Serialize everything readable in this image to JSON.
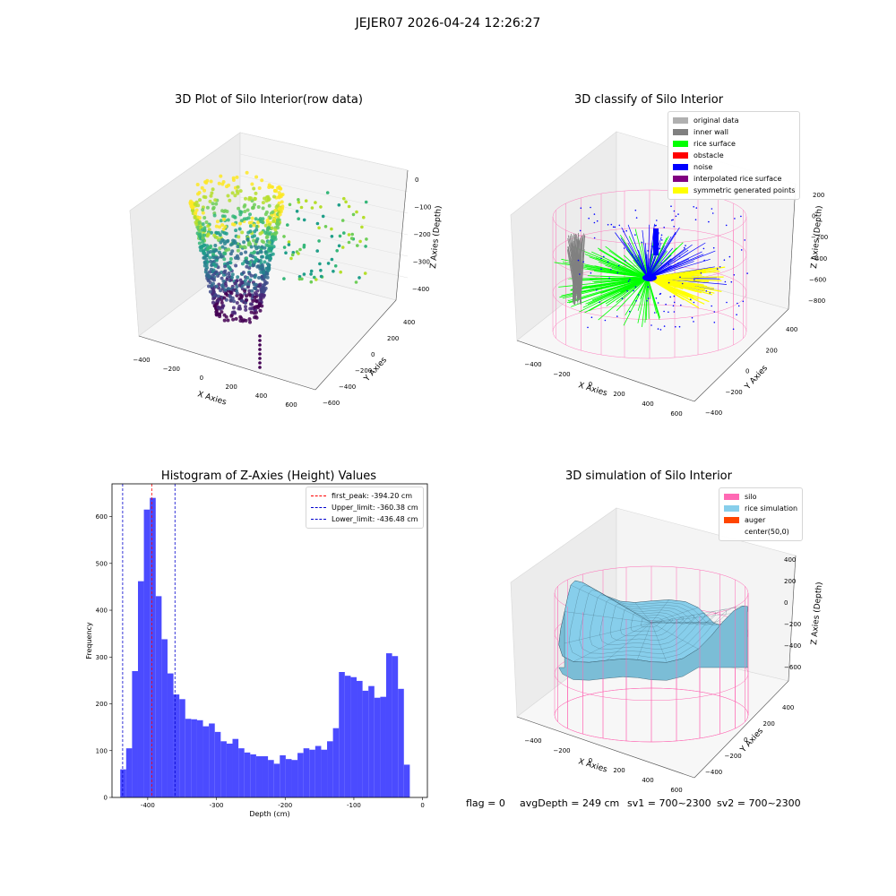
{
  "suptitle": "JEJER07 2026-04-24 12:26:27",
  "footer": {
    "flag": "flag = 0",
    "avg_depth": "avgDepth = 249 cm",
    "sv1": "sv1 = 700~2300",
    "sv2": "sv2 = 700~2300"
  },
  "colors": {
    "histogram": "#4b4bff",
    "first_peak": "#ff0000",
    "limits": "#0000cc",
    "silo": "#ff69b4",
    "rice_simulation": "#87ceeb",
    "auger": "#ff4500"
  },
  "chart_data": [
    {
      "type": "scatter",
      "projection": "3d",
      "title": "3D Plot of Silo Interior(row data)",
      "xlabel": "X Axies",
      "ylabel": "Y Axies",
      "zlabel": "Z Axies (Depth)",
      "x_ticks": [
        "−400",
        "−200",
        "0",
        "200",
        "400",
        "600"
      ],
      "y_ticks": [
        "−600",
        "−400",
        "−200",
        "0",
        "200",
        "400"
      ],
      "z_ticks": [
        "0",
        "−100",
        "−200",
        "−300",
        "−400"
      ],
      "colormap": "viridis"
    },
    {
      "type": "scatter",
      "projection": "3d",
      "title": "3D classify of Silo Interior",
      "xlabel": "X Axies",
      "ylabel": "Y Axies",
      "zlabel": "Z Axies (Depth)",
      "x_ticks": [
        "−400",
        "−200",
        "0",
        "200",
        "400",
        "600"
      ],
      "y_ticks": [
        "−400",
        "−200",
        "0",
        "200",
        "400"
      ],
      "z_ticks": [
        "200",
        "0",
        "−200",
        "−400",
        "−600",
        "−800"
      ],
      "legend": [
        {
          "label": "original data",
          "color": "#b0b0b0"
        },
        {
          "label": "inner wall",
          "color": "#808080"
        },
        {
          "label": "rice surface",
          "color": "#00ff00"
        },
        {
          "label": "obstacle",
          "color": "#ff0000"
        },
        {
          "label": "noise",
          "color": "#0000ff"
        },
        {
          "label": "interpolated rice surface",
          "color": "#800080"
        },
        {
          "label": "symmetric generated points",
          "color": "#ffff00"
        }
      ]
    },
    {
      "type": "bar",
      "title": "Histogram of Z-Axies (Height) Values",
      "xlabel": "Depth (cm)",
      "ylabel": "Frequency",
      "xlim": [
        -452,
        7
      ],
      "ylim": [
        0,
        670
      ],
      "x_ticks": [
        -400,
        -300,
        -200,
        -100,
        0
      ],
      "y_ticks": [
        0,
        100,
        200,
        300,
        400,
        500,
        600
      ],
      "bin_start": -440,
      "bin_width": 8.6,
      "values": [
        60,
        105,
        270,
        462,
        615,
        640,
        430,
        338,
        265,
        220,
        210,
        168,
        167,
        165,
        152,
        158,
        140,
        120,
        115,
        125,
        105,
        96,
        92,
        88,
        88,
        80,
        72,
        90,
        82,
        80,
        95,
        105,
        102,
        110,
        102,
        120,
        148,
        268,
        260,
        257,
        249,
        228,
        238,
        213,
        215,
        308,
        302,
        232,
        70
      ],
      "vlines": [
        {
          "label": "first_peak: -394.20 cm",
          "x": -394.2,
          "color": "#ff0000"
        },
        {
          "label": "Upper_limit: -360.38 cm",
          "x": -360.38,
          "color": "#0000cc"
        },
        {
          "label": "Lower_limit: -436.48 cm",
          "x": -436.48,
          "color": "#0000cc"
        }
      ],
      "legend_placement": "top-right"
    },
    {
      "type": "area",
      "projection": "3d",
      "title": "3D simulation of Silo Interior",
      "xlabel": "X Axies",
      "ylabel": "Y Axies",
      "zlabel": "Z Axies (Depth)",
      "x_ticks": [
        "−400",
        "−200",
        "0",
        "200",
        "400",
        "600"
      ],
      "y_ticks": [
        "−400",
        "−200",
        "0",
        "200",
        "400"
      ],
      "z_ticks": [
        "400",
        "200",
        "0",
        "−200",
        "−400",
        "−600"
      ],
      "legend": [
        {
          "label": "silo",
          "color": "#ff69b4"
        },
        {
          "label": "rice simulation",
          "color": "#87ceeb"
        },
        {
          "label": "auger",
          "color": "#ff4500"
        },
        {
          "label": "center(50,0)",
          "color": "#ffffff"
        }
      ]
    }
  ]
}
